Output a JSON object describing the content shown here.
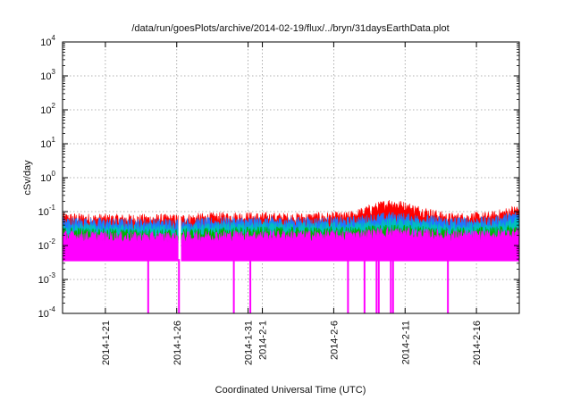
{
  "chart_data": {
    "type": "area",
    "title": "/data/run/goesPlots/archive/2014-02-19/flux/../bryn/31daysEarthData.plot",
    "xlabel": "Coordinated Universal Time (UTC)",
    "ylabel": "cSv/day",
    "y_scale": "log",
    "ylim": [
      0.0001,
      10000
    ],
    "xlim": [
      "2014-01-18",
      "2014-02-19"
    ],
    "grid": true,
    "legend": "none",
    "x_ticks": [
      {
        "date": "2014-01-21",
        "label": "2014-1-21"
      },
      {
        "date": "2014-01-26",
        "label": "2014-1-26"
      },
      {
        "date": "2014-01-31",
        "label": "2014-1-31"
      },
      {
        "date": "2014-02-01",
        "label": "2014-2-1"
      },
      {
        "date": "2014-02-06",
        "label": "2014-2-6"
      },
      {
        "date": "2014-02-11",
        "label": "2014-2-11"
      },
      {
        "date": "2014-02-16",
        "label": "2014-2-16"
      }
    ],
    "y_ticks": [
      {
        "value": 0.0001,
        "base": "10",
        "exp": "-4"
      },
      {
        "value": 0.001,
        "base": "10",
        "exp": "-3"
      },
      {
        "value": 0.01,
        "base": "10",
        "exp": "-2"
      },
      {
        "value": 0.1,
        "base": "10",
        "exp": "-1"
      },
      {
        "value": 1,
        "base": "10",
        "exp": "0"
      },
      {
        "value": 10,
        "base": "10",
        "exp": "1"
      },
      {
        "value": 100,
        "base": "10",
        "exp": "2"
      },
      {
        "value": 1000,
        "base": "10",
        "exp": "3"
      },
      {
        "value": 10000,
        "base": "10",
        "exp": "4"
      }
    ],
    "series": [
      {
        "color": "#ff0000",
        "band_typical": [
          0.03,
          0.08
        ],
        "x": [
          "2014-01-18",
          "2014-01-22",
          "2014-01-26",
          "2014-01-30",
          "2014-02-03",
          "2014-02-07",
          "2014-02-10",
          "2014-02-14",
          "2014-02-17",
          "2014-02-19"
        ],
        "y": [
          0.065,
          0.06,
          0.06,
          0.07,
          0.065,
          0.07,
          0.18,
          0.065,
          0.07,
          0.12
        ]
      },
      {
        "color": "#1e78ff",
        "band_typical": [
          0.02,
          0.06
        ],
        "x": [
          "2014-01-18",
          "2014-01-22",
          "2014-01-26",
          "2014-01-30",
          "2014-02-03",
          "2014-02-07",
          "2014-02-10",
          "2014-02-14",
          "2014-02-17",
          "2014-02-19"
        ],
        "y": [
          0.05,
          0.045,
          0.045,
          0.05,
          0.05,
          0.05,
          0.07,
          0.05,
          0.05,
          0.08
        ]
      },
      {
        "color": "#00c0c0",
        "band_typical": [
          0.015,
          0.04
        ],
        "x": [
          "2014-01-18",
          "2014-01-22",
          "2014-01-26",
          "2014-01-30",
          "2014-02-03",
          "2014-02-07",
          "2014-02-10",
          "2014-02-14",
          "2014-02-17",
          "2014-02-19"
        ],
        "y": [
          0.035,
          0.03,
          0.03,
          0.035,
          0.035,
          0.035,
          0.045,
          0.035,
          0.035,
          0.05
        ]
      },
      {
        "color": "#00b000",
        "band_typical": [
          0.012,
          0.03
        ],
        "x": [
          "2014-01-18",
          "2014-01-22",
          "2014-01-26",
          "2014-01-30",
          "2014-02-03",
          "2014-02-07",
          "2014-02-10",
          "2014-02-14",
          "2014-02-17",
          "2014-02-19"
        ],
        "y": [
          0.025,
          0.022,
          0.022,
          0.025,
          0.025,
          0.025,
          0.03,
          0.025,
          0.025,
          0.03
        ]
      },
      {
        "color": "#ff00ff",
        "band_typical": [
          0.0035,
          0.025
        ],
        "x": [
          "2014-01-18",
          "2014-01-22",
          "2014-01-26",
          "2014-01-30",
          "2014-02-03",
          "2014-02-07",
          "2014-02-10",
          "2014-02-14",
          "2014-02-17",
          "2014-02-19"
        ],
        "y": [
          0.02,
          0.018,
          0.018,
          0.02,
          0.02,
          0.02,
          0.025,
          0.02,
          0.02,
          0.025
        ],
        "dropouts": [
          "2014-01-24",
          "2014-01-26",
          "2014-01-30",
          "2014-01-31",
          "2014-02-07",
          "2014-02-08",
          "2014-02-09",
          "2014-02-09",
          "2014-02-10",
          "2014-02-10",
          "2014-02-14"
        ]
      }
    ],
    "gaps": [
      {
        "start": "2014-01-26",
        "end": "2014-01-26"
      }
    ]
  }
}
